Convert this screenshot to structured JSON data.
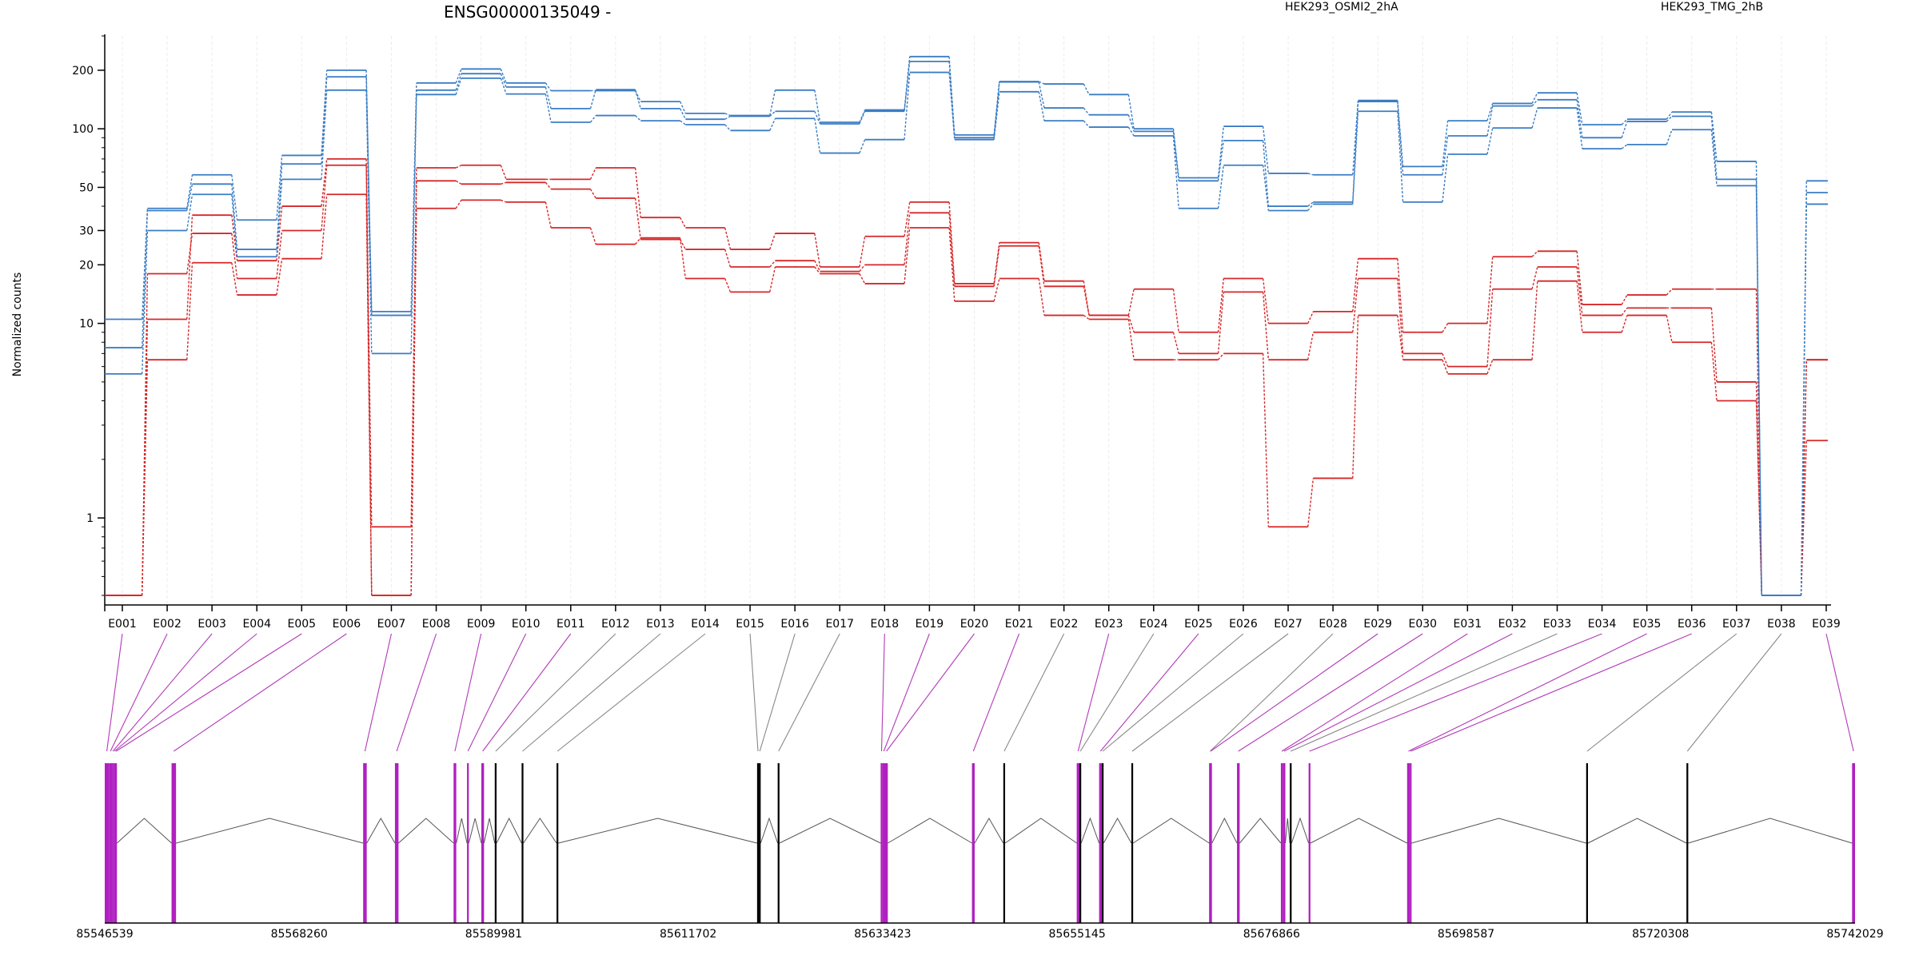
{
  "chart_data": {
    "type": "line",
    "title": "ENSG00000135049 -",
    "ylabel": "Normalized counts",
    "y_scale": "log",
    "ylim": [
      0.4,
      300
    ],
    "y_ticks": [
      1,
      10,
      20,
      30,
      50,
      100,
      200
    ],
    "grid": true,
    "legend_placement": "top",
    "categories": [
      "E001",
      "E002",
      "E003",
      "E004",
      "E005",
      "E006",
      "E007",
      "E008",
      "E009",
      "E010",
      "E011",
      "E012",
      "E013",
      "E014",
      "E015",
      "E016",
      "E017",
      "E018",
      "E019",
      "E020",
      "E021",
      "E022",
      "E023",
      "E024",
      "E025",
      "E026",
      "E027",
      "E028",
      "E029",
      "E030",
      "E031",
      "E032",
      "E033",
      "E034",
      "E035",
      "E036",
      "E037",
      "E038",
      "E039"
    ],
    "groups": [
      {
        "name": "HEK293_OSMI2_2hA",
        "color": "#d62728"
      },
      {
        "name": "HEK293_TMG_2hB",
        "color": "#3b7dc4"
      }
    ],
    "series": [
      {
        "group": 0,
        "values": [
          0.4,
          10.5,
          36,
          21,
          40,
          70,
          0.9,
          63,
          65,
          55,
          55,
          63,
          35,
          31,
          24,
          29,
          19.5,
          28,
          42,
          16,
          26,
          16.5,
          11,
          15,
          9,
          17,
          10,
          11.5,
          21.5,
          9,
          10,
          22,
          23.5,
          12.5,
          14,
          15,
          15,
          0.4,
          6.5
        ]
      },
      {
        "group": 0,
        "values": [
          0.4,
          18,
          29,
          17,
          30,
          65,
          0.4,
          54,
          52,
          53,
          49,
          44,
          27,
          24,
          19.5,
          21,
          18.5,
          20,
          37,
          15.5,
          25,
          15.5,
          11,
          9,
          7,
          14.5,
          6.5,
          9,
          17,
          7,
          6,
          15,
          19.5,
          11,
          12,
          12,
          5,
          0.4,
          6.5
        ]
      },
      {
        "group": 0,
        "values": [
          0.4,
          6.5,
          20.5,
          14,
          21.5,
          46,
          0.4,
          39,
          43,
          42,
          31,
          25.5,
          27.5,
          17,
          14.5,
          19.5,
          18,
          16,
          31,
          13,
          17,
          11,
          10.5,
          6.5,
          6.5,
          7,
          0.9,
          1.6,
          11,
          6.5,
          5.5,
          6.5,
          16.5,
          9,
          11,
          8,
          4,
          0.4,
          2.5
        ]
      },
      {
        "group": 1,
        "values": [
          10.5,
          39,
          58,
          34,
          73,
          200,
          11.5,
          172,
          203,
          172,
          157,
          157,
          138,
          120,
          117,
          158,
          108,
          125,
          235,
          93,
          175,
          170,
          150,
          100,
          56,
          103,
          59,
          58,
          140,
          64,
          110,
          135,
          153,
          105,
          112,
          122,
          68,
          0.4,
          54
        ]
      },
      {
        "group": 1,
        "values": [
          7.5,
          38,
          52,
          24,
          66,
          185,
          11,
          158,
          192,
          164,
          127,
          159,
          127,
          112,
          116,
          123,
          106,
          123,
          222,
          90,
          174,
          128,
          118,
          97,
          54,
          87,
          40,
          42,
          138,
          58,
          92,
          131,
          141,
          90,
          109,
          116,
          55,
          0.4,
          47
        ]
      },
      {
        "group": 1,
        "values": [
          5.5,
          30,
          46,
          22,
          55,
          158,
          7,
          150,
          182,
          151,
          108,
          117,
          110,
          105,
          98,
          113,
          75,
          88,
          195,
          88,
          155,
          110,
          102,
          92,
          39,
          65,
          38,
          41,
          123,
          42,
          74,
          101,
          128,
          79,
          83,
          99,
          51,
          0.4,
          41
        ]
      }
    ],
    "genome_axis": {
      "ticks": [
        85546539,
        85568260,
        85589981,
        85611702,
        85633423,
        85655145,
        85676866,
        85698587,
        85720308,
        85742029
      ],
      "range": [
        85546539,
        85742029
      ]
    },
    "exons": [
      {
        "id": "E001",
        "start": 85546539,
        "end": 85547000,
        "significant": true
      },
      {
        "id": "E002",
        "start": 85547000,
        "end": 85547350,
        "significant": true
      },
      {
        "id": "E003",
        "start": 85547350,
        "end": 85547550,
        "significant": true
      },
      {
        "id": "E004",
        "start": 85547550,
        "end": 85547700,
        "significant": true
      },
      {
        "id": "E005",
        "start": 85547700,
        "end": 85547900,
        "significant": true
      },
      {
        "id": "E006",
        "start": 85554000,
        "end": 85554500,
        "significant": true
      },
      {
        "id": "E007",
        "start": 85575400,
        "end": 85575800,
        "significant": true
      },
      {
        "id": "E008",
        "start": 85578950,
        "end": 85579350,
        "significant": true
      },
      {
        "id": "E009",
        "start": 85585500,
        "end": 85585800,
        "significant": true
      },
      {
        "id": "E010",
        "start": 85587000,
        "end": 85587200,
        "significant": true
      },
      {
        "id": "E011",
        "start": 85588600,
        "end": 85588900,
        "significant": true
      },
      {
        "id": "E012",
        "start": 85590100,
        "end": 85590300,
        "significant": false
      },
      {
        "id": "E013",
        "start": 85593100,
        "end": 85593300,
        "significant": false
      },
      {
        "id": "E014",
        "start": 85597000,
        "end": 85597200,
        "significant": false
      },
      {
        "id": "E015",
        "start": 85619400,
        "end": 85619600,
        "significant": false
      },
      {
        "id": "E016",
        "start": 85619600,
        "end": 85619800,
        "significant": false
      },
      {
        "id": "E017",
        "start": 85621700,
        "end": 85621900,
        "significant": false
      },
      {
        "id": "E018",
        "start": 85633200,
        "end": 85633400,
        "significant": true
      },
      {
        "id": "E019",
        "start": 85633400,
        "end": 85633700,
        "significant": true
      },
      {
        "id": "E020",
        "start": 85633700,
        "end": 85634000,
        "significant": true
      },
      {
        "id": "E021",
        "start": 85643400,
        "end": 85643700,
        "significant": true
      },
      {
        "id": "E022",
        "start": 85646900,
        "end": 85647100,
        "significant": false
      },
      {
        "id": "E023",
        "start": 85655100,
        "end": 85655400,
        "significant": true
      },
      {
        "id": "E024",
        "start": 85655400,
        "end": 85655600,
        "significant": false
      },
      {
        "id": "E025",
        "start": 85657600,
        "end": 85657900,
        "significant": true
      },
      {
        "id": "E026",
        "start": 85657900,
        "end": 85658100,
        "significant": false
      },
      {
        "id": "E027",
        "start": 85661200,
        "end": 85661400,
        "significant": false
      },
      {
        "id": "E028",
        "start": 85669900,
        "end": 85670100,
        "significant": false
      },
      {
        "id": "E029",
        "start": 85669900,
        "end": 85670200,
        "significant": true
      },
      {
        "id": "E030",
        "start": 85673000,
        "end": 85673300,
        "significant": true
      },
      {
        "id": "E031",
        "start": 85677900,
        "end": 85678100,
        "significant": true
      },
      {
        "id": "E032",
        "start": 85678100,
        "end": 85678400,
        "significant": true
      },
      {
        "id": "E033",
        "start": 85678900,
        "end": 85679100,
        "significant": false
      },
      {
        "id": "E034",
        "start": 85681000,
        "end": 85681200,
        "significant": true
      },
      {
        "id": "E035",
        "start": 85692000,
        "end": 85692300,
        "significant": true
      },
      {
        "id": "E036",
        "start": 85692300,
        "end": 85692500,
        "significant": true
      },
      {
        "id": "E037",
        "start": 85712000,
        "end": 85712200,
        "significant": false
      },
      {
        "id": "E038",
        "start": 85723200,
        "end": 85723400,
        "significant": false
      },
      {
        "id": "E039",
        "start": 85741700,
        "end": 85742029,
        "significant": true
      }
    ],
    "colors": {
      "significant": "#b23ab8",
      "not_significant": "#888888",
      "exon_significant": "#b020c0",
      "exon_plain": "#000000"
    }
  }
}
